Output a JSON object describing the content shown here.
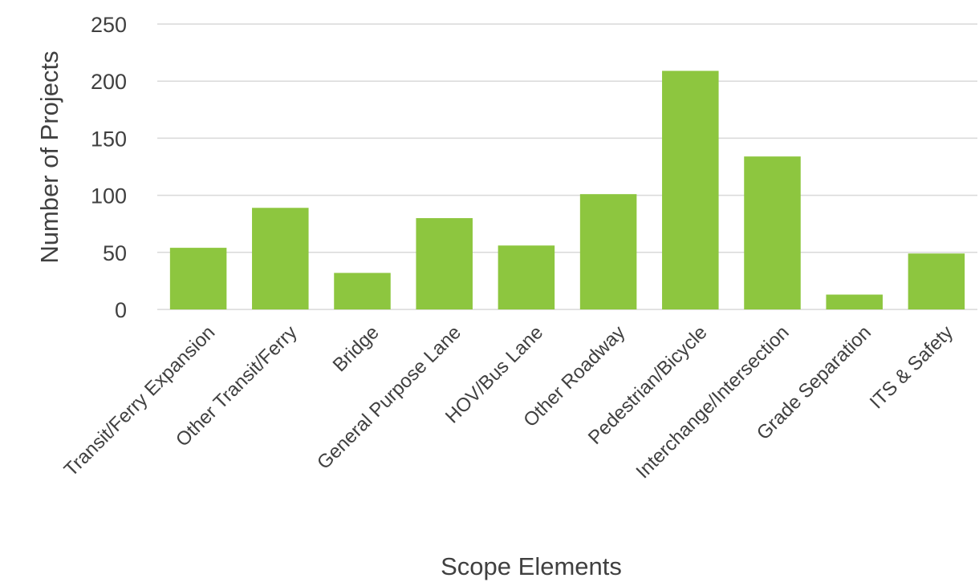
{
  "chart_data": {
    "type": "bar",
    "categories": [
      "Transit/Ferry Expansion",
      "Other Transit/Ferry",
      "Bridge",
      "General Purpose Lane",
      "HOV/Bus Lane",
      "Other Roadway",
      "Pedestrian/Bicycle",
      "Interchange/Intersection",
      "Grade Separation",
      "ITS & Safety"
    ],
    "values": [
      54,
      89,
      32,
      80,
      56,
      101,
      209,
      134,
      13,
      49
    ],
    "title": "",
    "xlabel": "Scope Elements",
    "ylabel": "Number of Projects",
    "ylim": [
      0,
      250
    ],
    "yticks": [
      0,
      50,
      100,
      150,
      200,
      250
    ],
    "grid": true,
    "legend": "none",
    "bar_color": "#8dc63f",
    "grid_color": "#d9d9d9",
    "text_color": "#404040"
  }
}
